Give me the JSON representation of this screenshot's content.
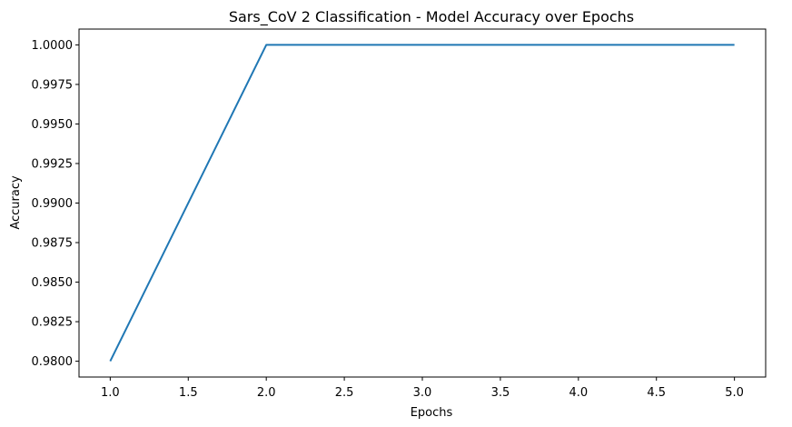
{
  "chart_data": {
    "type": "line",
    "title": "Sars_CoV 2 Classification - Model Accuracy over Epochs",
    "xlabel": "Epochs",
    "ylabel": "Accuracy",
    "x": [
      1,
      2,
      3,
      4,
      5
    ],
    "series": [
      {
        "values": [
          0.98,
          1.0,
          1.0,
          1.0,
          1.0
        ],
        "color": "#1f77b4"
      }
    ],
    "xlim": [
      0.8,
      5.2
    ],
    "ylim": [
      0.979,
      1.001
    ],
    "xticks": [
      1.0,
      1.5,
      2.0,
      2.5,
      3.0,
      3.5,
      4.0,
      4.5,
      5.0
    ],
    "xtick_labels": [
      "1.0",
      "1.5",
      "2.0",
      "2.5",
      "3.0",
      "3.5",
      "4.0",
      "4.5",
      "5.0"
    ],
    "yticks": [
      0.98,
      0.9825,
      0.985,
      0.9875,
      0.99,
      0.9925,
      0.995,
      0.9975,
      1.0
    ],
    "ytick_labels": [
      "0.9800",
      "0.9825",
      "0.9850",
      "0.9875",
      "0.9900",
      "0.9925",
      "0.9950",
      "0.9975",
      "1.0000"
    ],
    "grid": false,
    "legend": "none"
  }
}
